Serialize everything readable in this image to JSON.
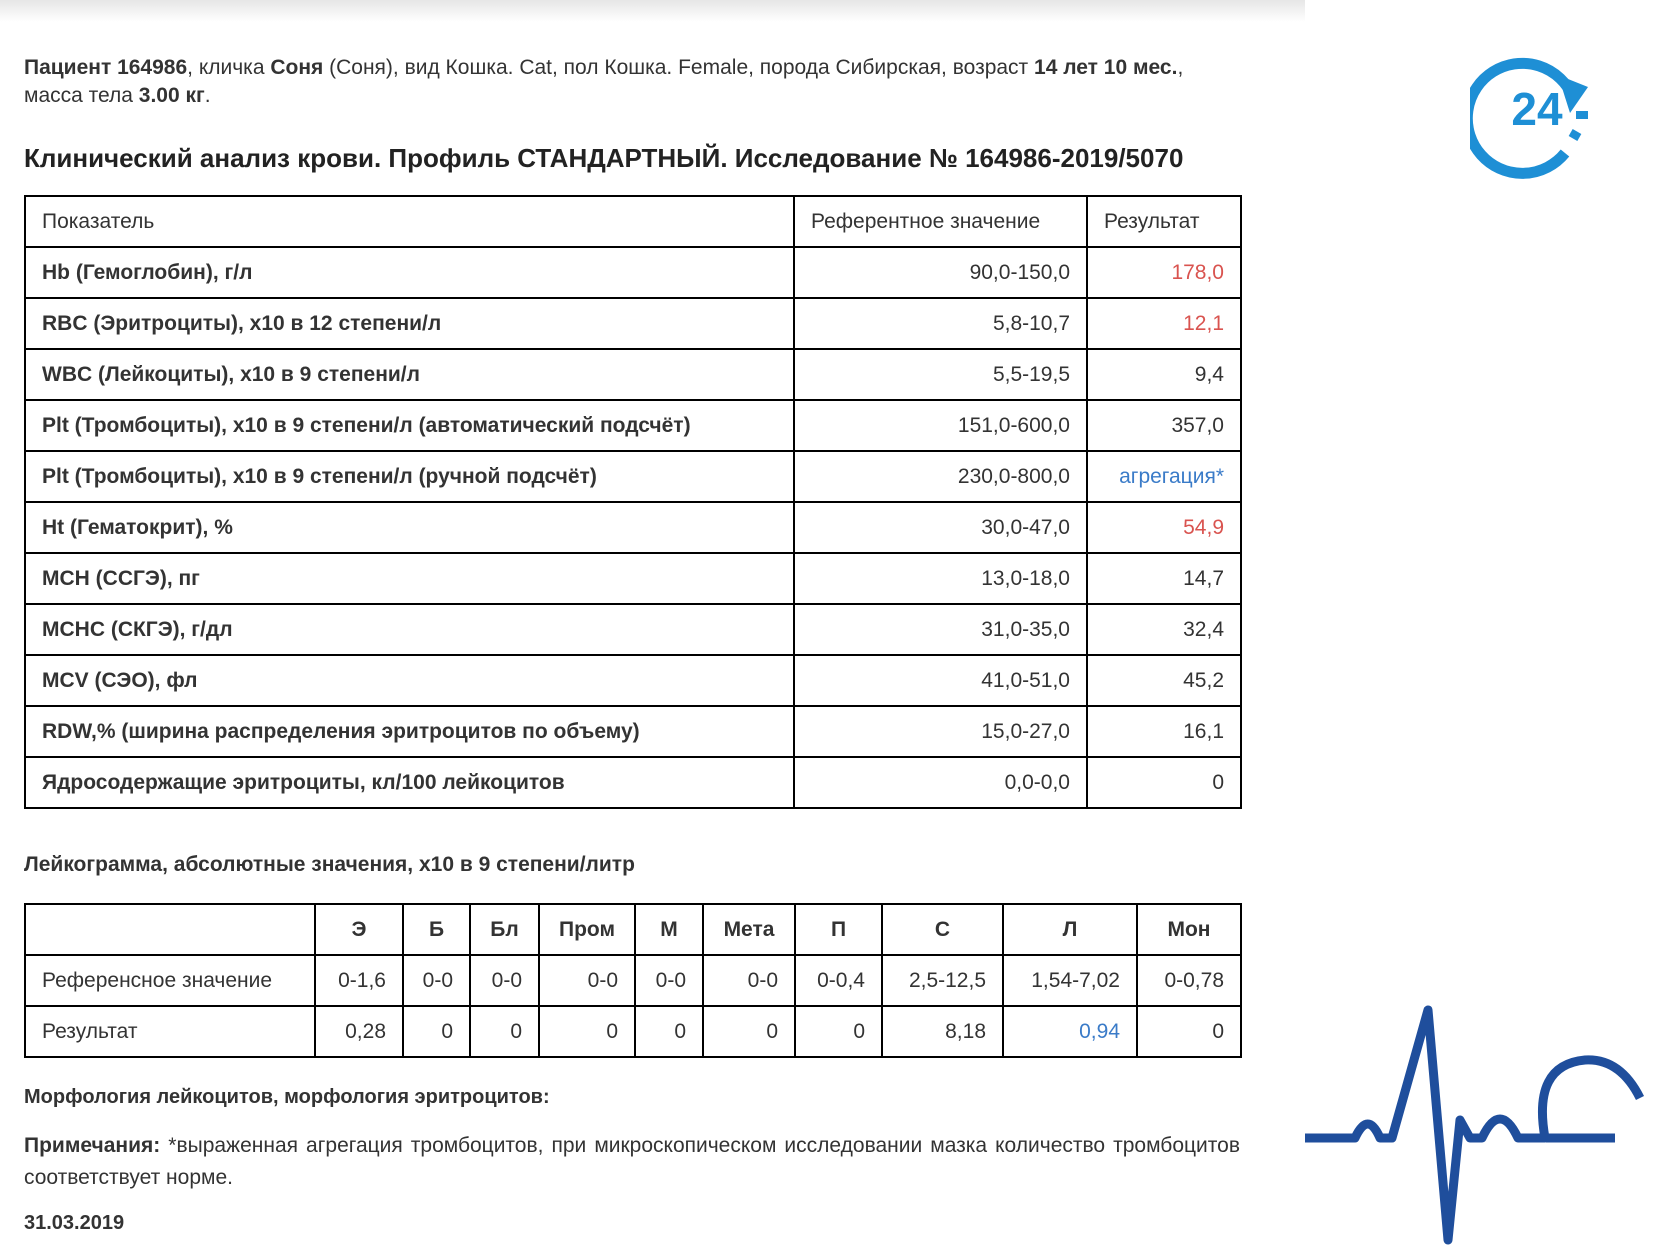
{
  "patient": {
    "parts": [
      "Пациент 164986",
      ", кличка ",
      "Соня",
      " (Соня), вид Кошка. Cat, пол Кошка. Female, порода Сибирская, возраст ",
      "14 лет 10 мес.",
      ", масса тела ",
      "3.00 кг",
      "."
    ]
  },
  "title": "Клинический анализ крови. Профиль СТАНДАРТНЫЙ. Исследование № 164986-2019/5070",
  "table": {
    "header": [
      "Показатель",
      "Референтное значение",
      "Результат"
    ],
    "rows": [
      [
        "Hb (Гемоглобин), г/л",
        "90,0-150,0",
        "178,0"
      ],
      [
        "RBC (Эритроциты), x10 в 12 степени/л",
        "5,8-10,7",
        "12,1"
      ],
      [
        "WBC (Лейкоциты), x10 в 9 степени/л",
        "5,5-19,5",
        "9,4"
      ],
      [
        "Plt (Тромбоциты), x10 в 9 степени/л (автоматический подсчёт)",
        "151,0-600,0",
        "357,0"
      ],
      [
        "Plt (Тромбоциты), x10 в 9 степени/л (ручной подсчёт)",
        "230,0-800,0",
        "агрегация*"
      ],
      [
        "Ht (Гематокрит), %",
        "30,0-47,0",
        "54,9"
      ],
      [
        "MCH (ССГЭ), пг",
        "13,0-18,0",
        "14,7"
      ],
      [
        "MCHC (СКГЭ), г/дл",
        "31,0-35,0",
        "32,4"
      ],
      [
        "MCV (СЭО), фл",
        "41,0-51,0",
        "45,2"
      ],
      [
        "RDW,% (ширина распределения эритроцитов по объему)",
        "15,0-27,0",
        "16,1"
      ],
      [
        "Ядросодержащие эритроциты, кл/100 лейкоцитов",
        "0,0-0,0",
        "0"
      ]
    ]
  },
  "leukogram": {
    "title": "Лейкограмма, абсолютные значения, x10 в 9 степени/литр",
    "header": [
      "Э",
      "Б",
      "Бл",
      "Пром",
      "М",
      "Мета",
      "П",
      "С",
      "Л",
      "Мон"
    ],
    "rows": [
      {
        "label": "Референсное значение",
        "values": [
          "0-1,6",
          "0-0",
          "0-0",
          "0-0",
          "0-0",
          "0-0",
          "0-0,4",
          "2,5-12,5",
          "1,54-7,02",
          "0-0,78"
        ]
      },
      {
        "label": "Результат",
        "values": [
          "0,28",
          "0",
          "0",
          "0",
          "0",
          "0",
          "0",
          "8,18",
          "0,94",
          "0"
        ]
      }
    ]
  },
  "morphology": "Морфология лейкоцитов, морфология эритроцитов:",
  "notes": {
    "label": "Примечания:",
    "text": "*выраженная агрегация тромбоцитов, при микроскопическом исследовании мазка количество тромбоцитов соответствует норме."
  },
  "date": "31.03.2019",
  "logo": {
    "text": "24"
  }
}
